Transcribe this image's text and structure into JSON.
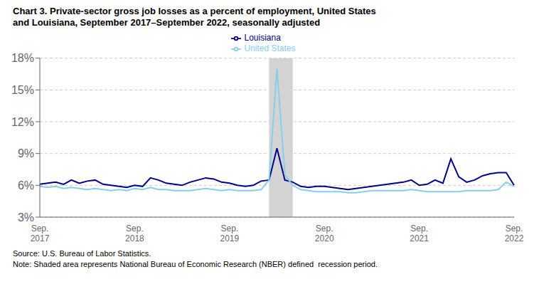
{
  "chart_data": {
    "type": "line",
    "title": "Chart 3. Private-sector gross job losses as a percent of employment, United States\nand Louisiana, September 2017–September 2022, seasonally adjusted",
    "annotations": [
      "Source: U.S. Bureau of Labor Statistics.",
      "Note: Shaded area represents National Bureau of Economic Research (NBER) defined  recession period."
    ],
    "categories": [
      "Sep.\n2017",
      null,
      null,
      null,
      null,
      null,
      null,
      null,
      null,
      null,
      null,
      null,
      "Sep.\n2018",
      null,
      null,
      null,
      null,
      null,
      null,
      null,
      null,
      null,
      null,
      null,
      "Sep.\n2019",
      null,
      null,
      null,
      null,
      null,
      null,
      null,
      null,
      null,
      null,
      null,
      "Sep.\n2020",
      null,
      null,
      null,
      null,
      null,
      null,
      null,
      null,
      null,
      null,
      null,
      "Sep.\n2021",
      null,
      null,
      null,
      null,
      null,
      null,
      null,
      null,
      null,
      null,
      null,
      "Sep.\n2022"
    ],
    "series": [
      {
        "name": "Louisiana",
        "color": "#00008B",
        "values": [
          6.1,
          6.2,
          6.3,
          6.1,
          6.5,
          6.2,
          6.4,
          6.5,
          6.1,
          6.0,
          5.9,
          5.8,
          6.0,
          5.9,
          6.7,
          6.5,
          6.2,
          6.1,
          6.0,
          6.3,
          6.5,
          6.7,
          6.6,
          6.3,
          6.2,
          6.0,
          5.9,
          6.0,
          6.4,
          6.5,
          9.5,
          6.5,
          6.3,
          5.9,
          5.8,
          5.9,
          5.9,
          5.8,
          5.7,
          5.6,
          5.7,
          5.8,
          5.9,
          6.0,
          6.1,
          6.2,
          6.3,
          6.5,
          6.0,
          6.1,
          6.5,
          6.2,
          8.5,
          6.8,
          6.3,
          6.5,
          6.9,
          7.1,
          7.2,
          7.2,
          6.0
        ]
      },
      {
        "name": "United States",
        "color": "#87CEEB",
        "values": [
          5.9,
          5.8,
          5.9,
          5.7,
          5.8,
          5.7,
          5.6,
          5.7,
          5.6,
          5.5,
          5.6,
          5.5,
          5.7,
          5.6,
          5.8,
          5.6,
          5.6,
          5.5,
          5.5,
          5.5,
          5.6,
          5.7,
          5.6,
          5.5,
          5.6,
          5.5,
          5.5,
          5.5,
          5.6,
          6.5,
          17.0,
          7.0,
          6.0,
          5.6,
          5.5,
          5.4,
          5.4,
          5.4,
          5.4,
          5.3,
          5.3,
          5.4,
          5.5,
          5.5,
          5.5,
          5.5,
          5.5,
          5.6,
          5.5,
          5.4,
          5.4,
          5.4,
          5.4,
          5.4,
          5.5,
          5.5,
          5.5,
          5.5,
          5.6,
          6.3,
          5.9
        ]
      }
    ],
    "shaded_span": {
      "start": 29,
      "end": 32,
      "color": "#D3D3D3"
    },
    "ylim": [
      3,
      18
    ],
    "yticks": [
      {
        "value": 3,
        "label": "3%"
      },
      {
        "value": 6,
        "label": "6%"
      },
      {
        "value": 9,
        "label": "9%"
      },
      {
        "value": 12,
        "label": "12%"
      },
      {
        "value": 15,
        "label": "15%"
      },
      {
        "value": 18,
        "label": "18%"
      }
    ],
    "grid": true,
    "legend": "top"
  }
}
